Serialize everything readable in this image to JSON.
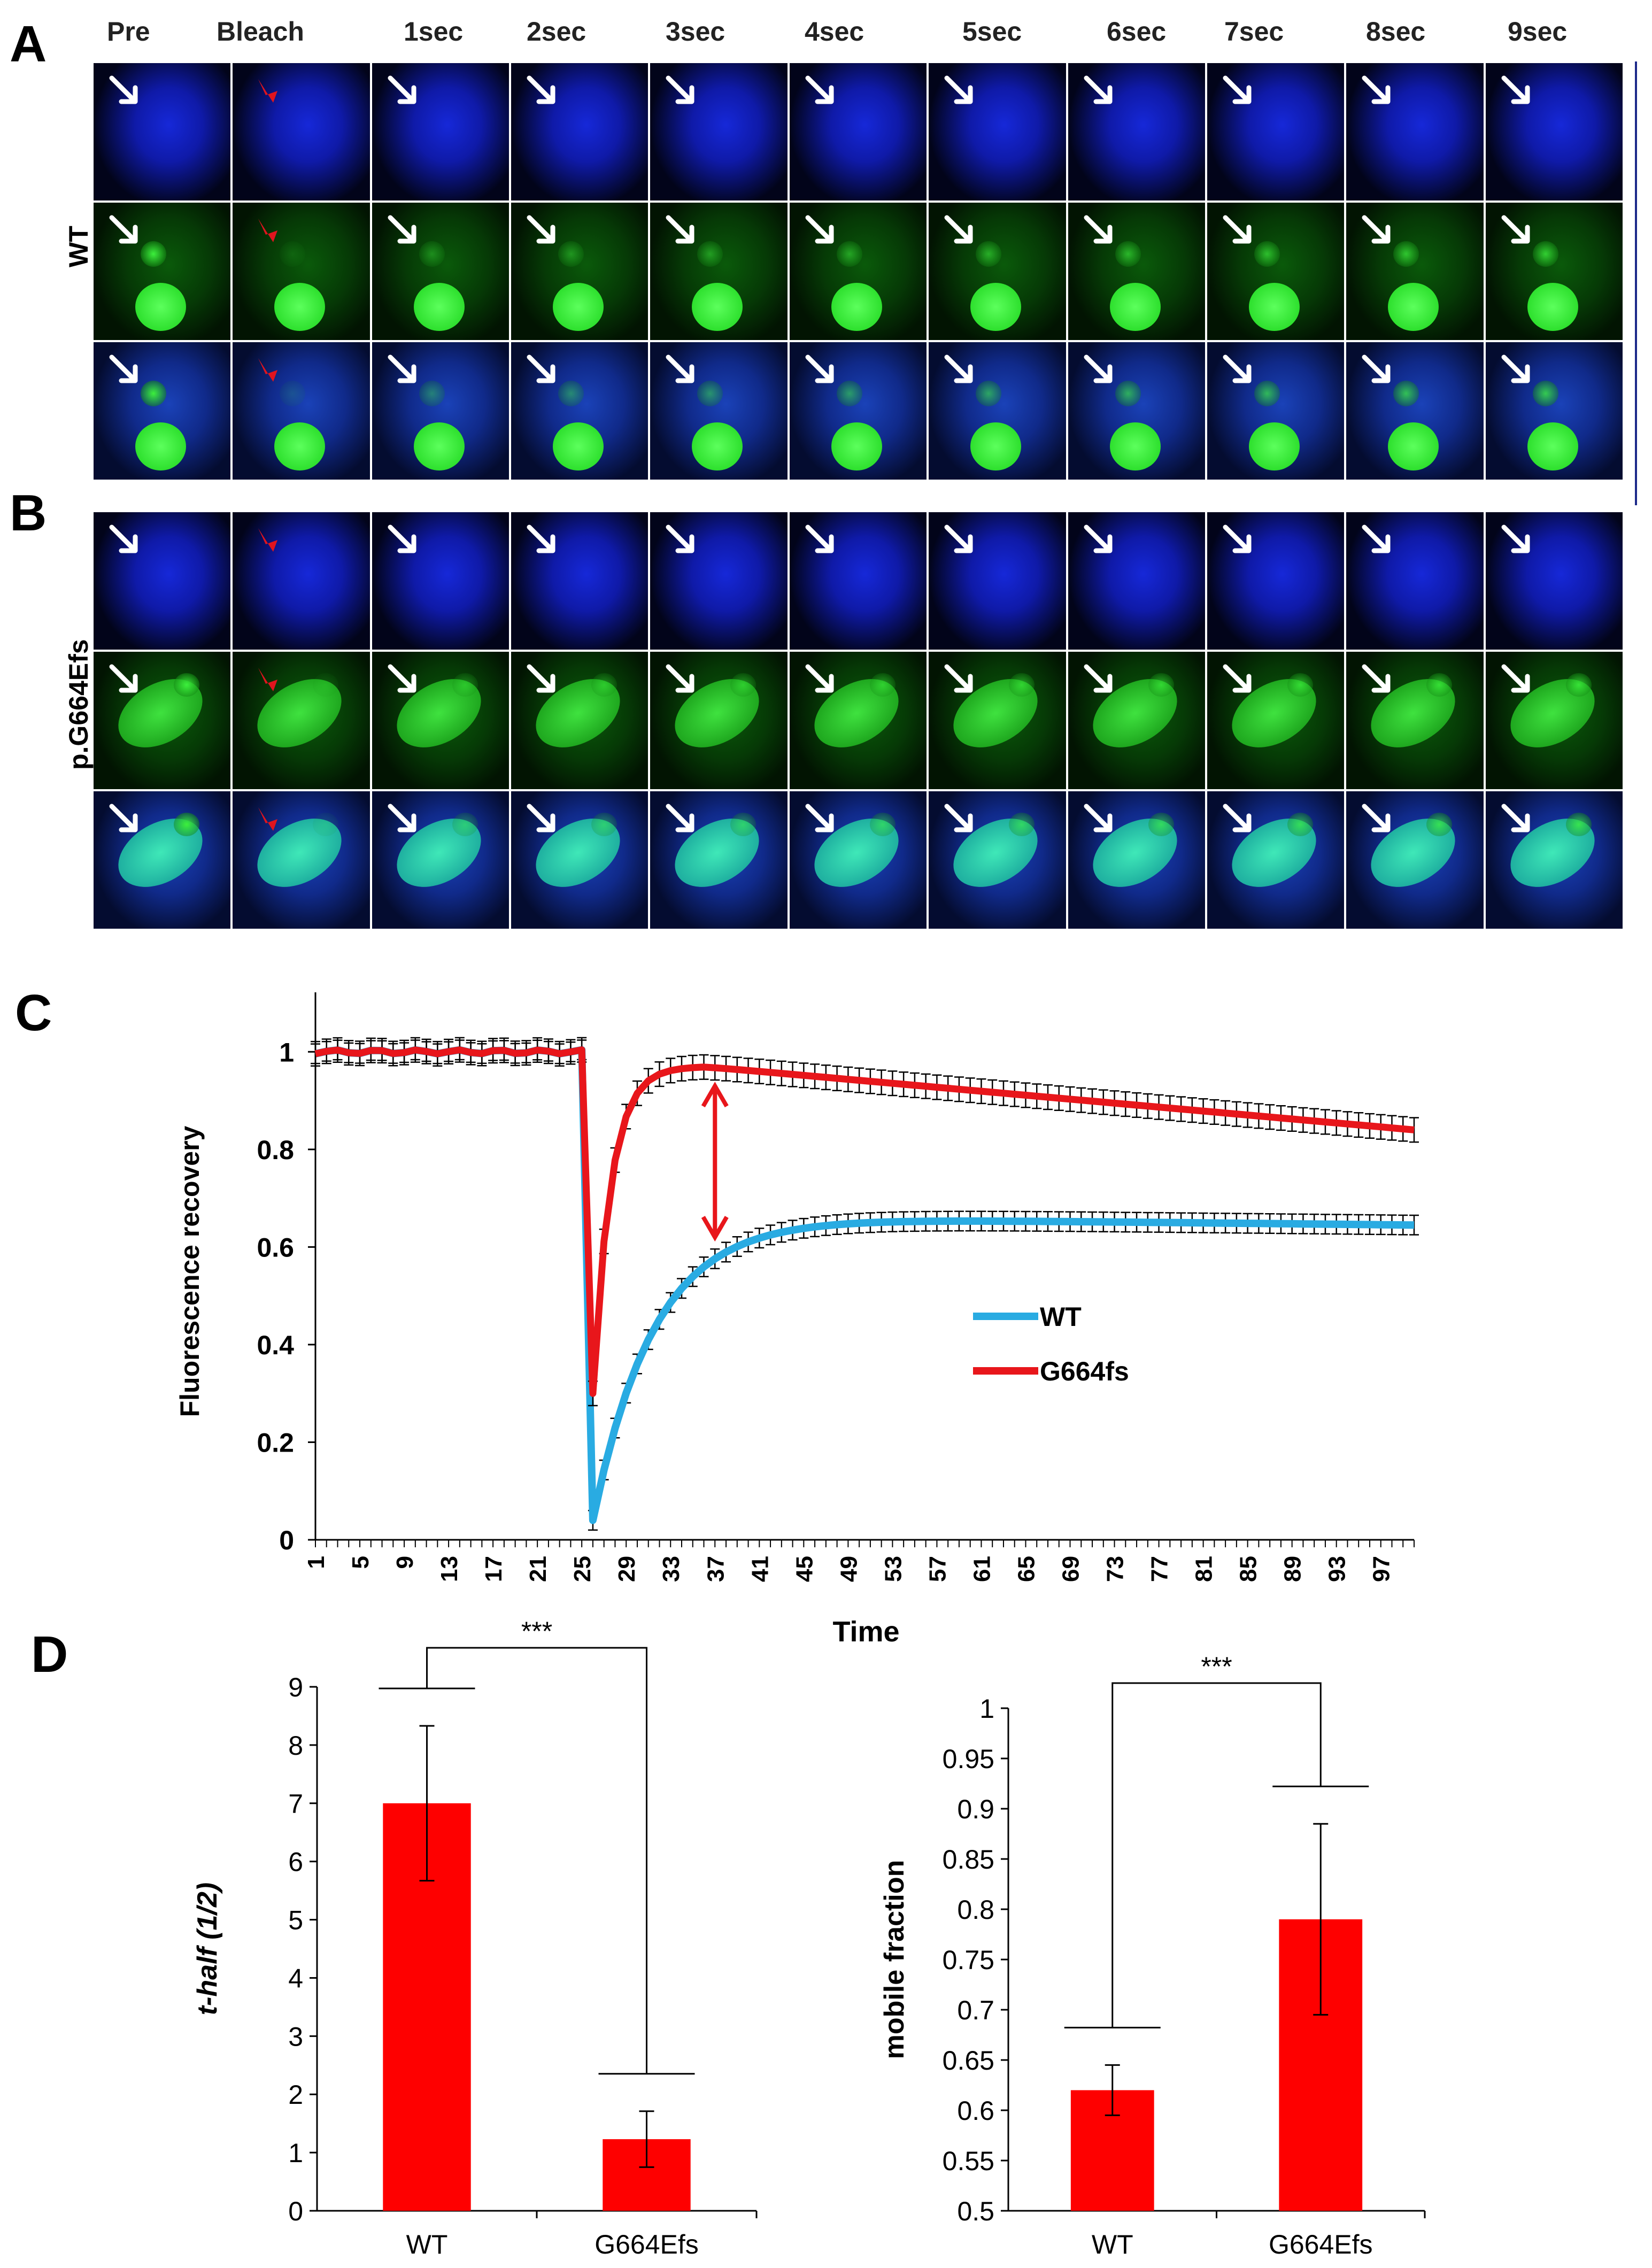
{
  "panels": {
    "a": "A",
    "b": "B",
    "c": "C",
    "d": "D"
  },
  "timepoints": [
    "Pre",
    "Bleach",
    "1sec",
    "2sec",
    "3sec",
    "4sec",
    "5sec",
    "6sec",
    "7sec",
    "8sec",
    "9sec"
  ],
  "row_labels": {
    "wt": "WT",
    "mutant": "p.G664Efs"
  },
  "colors": {
    "wt_line": "#29abe2",
    "mutant_line": "#e8161b",
    "bar": "#fe0000",
    "arrow_bleach": "#e0141e",
    "arrow_white": "#ffffff"
  },
  "chart_data": [
    {
      "type": "line",
      "title": "",
      "xlabel": "Time",
      "ylabel": "Fluorescence recovery",
      "ylim": [
        0,
        1.1
      ],
      "yticks": [
        "0",
        "0.2",
        "0.4",
        "0.6",
        "0.8",
        "1"
      ],
      "xticks": [
        "1",
        "5",
        "9",
        "13",
        "17",
        "21",
        "25",
        "29",
        "33",
        "37",
        "41",
        "45",
        "49",
        "53",
        "57",
        "61",
        "65",
        "69",
        "73",
        "77",
        "81",
        "85",
        "89",
        "93",
        "97"
      ],
      "xtick_positions": [
        1,
        5,
        9,
        13,
        17,
        21,
        25,
        29,
        33,
        37,
        41,
        45,
        49,
        53,
        57,
        61,
        65,
        69,
        73,
        77,
        81,
        85,
        89,
        93,
        97
      ],
      "xlim": [
        1,
        100
      ],
      "bleach_frame": 26,
      "legend": [
        "WT",
        "G664fs"
      ],
      "series": [
        {
          "name": "WT",
          "pre": 1.0,
          "min": 0.04,
          "plateau": 0.66,
          "tau": 5.5,
          "end": 0.645,
          "err": 0.02
        },
        {
          "name": "G664fs",
          "pre": 1.0,
          "min": 0.3,
          "plateau": 0.97,
          "tau": 1.6,
          "end": 0.84,
          "err": 0.025
        }
      ]
    },
    {
      "type": "bar",
      "categories": [
        "WT",
        "G664Efs"
      ],
      "values": [
        7.0,
        1.23
      ],
      "errors": [
        1.33,
        0.48
      ],
      "ylabel": "t-half (1/2)",
      "ylim": [
        0,
        9
      ],
      "yticks": [
        "0",
        "1",
        "2",
        "3",
        "4",
        "5",
        "6",
        "7",
        "8",
        "9"
      ],
      "significance": "***"
    },
    {
      "type": "bar",
      "categories": [
        "WT",
        "G664Efs"
      ],
      "values": [
        0.62,
        0.79
      ],
      "errors": [
        0.025,
        0.095
      ],
      "ylabel": "mobile fraction",
      "ylim": [
        0.5,
        1.0
      ],
      "yticks": [
        "0.5",
        "0.55",
        "0.6",
        "0.65",
        "0.7",
        "0.75",
        "0.8",
        "0.85",
        "0.9",
        "0.95",
        "1"
      ],
      "significance": "***"
    }
  ]
}
